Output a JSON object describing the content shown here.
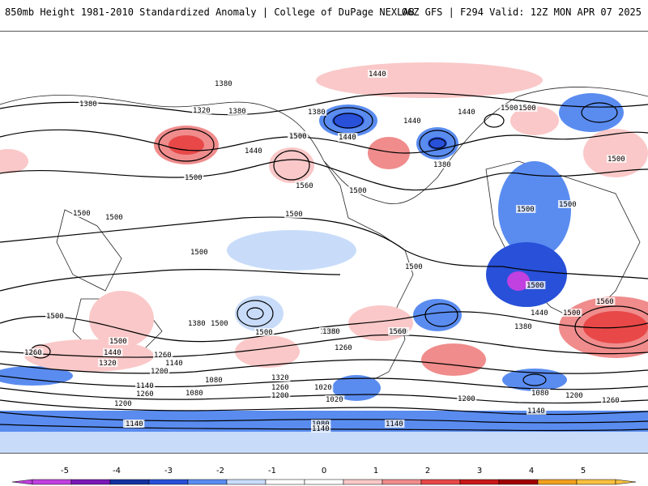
{
  "header": {
    "left_title": "850mb Height 1981-2010 Standardized Anomaly | College of DuPage NEXLAB",
    "right_title": "06Z GFS | F294 Valid: 12Z MON APR 07 2025"
  },
  "map": {
    "contour_labels": [
      "1380",
      "1380",
      "1320",
      "1380",
      "1380",
      "1440",
      "1440",
      "1500",
      "1500",
      "1440",
      "1500",
      "1380",
      "1440",
      "1500",
      "1500",
      "1560",
      "1500",
      "1380",
      "1440",
      "1500",
      "1500",
      "1500",
      "1500",
      "1500",
      "1500",
      "1500",
      "1500",
      "1500",
      "1440",
      "1380",
      "1500",
      "1500",
      "1560",
      "1500",
      "1560",
      "1380",
      "1500",
      "1500",
      "1260",
      "1440",
      "1320",
      "1260",
      "1200",
      "1140",
      "1380",
      "1260",
      "1560",
      "1500",
      "1380",
      "1320",
      "1260",
      "1200",
      "1140",
      "1080",
      "1140",
      "1260",
      "1200",
      "1080",
      "1020",
      "1020",
      "1080",
      "1140",
      "1140",
      "1140",
      "1200",
      "1080",
      "1200",
      "1260",
      "1140",
      "1140"
    ]
  },
  "colorbar": {
    "ticks": [
      "-5",
      "-4",
      "-3",
      "-2",
      "-1",
      "0",
      "1",
      "2",
      "3",
      "4",
      "5"
    ],
    "colors": [
      "#c040e0",
      "#7a18b8",
      "#1432a0",
      "#2850d8",
      "#5a8cf0",
      "#c8dcfa",
      "#ffffff",
      "#ffffff",
      "#fac8c8",
      "#f08c8c",
      "#e84848",
      "#c81818",
      "#a00000",
      "#f0a020",
      "#f8c040"
    ]
  }
}
